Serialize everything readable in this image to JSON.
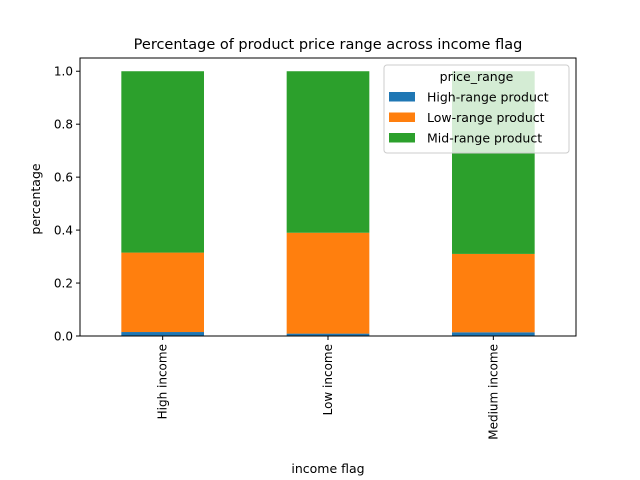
{
  "chart_data": {
    "type": "bar",
    "stacked": true,
    "title": "Percentage of product price range across income flag",
    "xlabel": "income flag",
    "ylabel": "percentage",
    "ylim": [
      0,
      1.05
    ],
    "yticks": [
      "0.0",
      "0.2",
      "0.4",
      "0.6",
      "0.8",
      "1.0"
    ],
    "categories": [
      "High income",
      "Low income",
      "Medium income"
    ],
    "series": [
      {
        "name": "High-range product",
        "color": "#1f77b4",
        "values": [
          0.015,
          0.009,
          0.014
        ]
      },
      {
        "name": "Low-range product",
        "color": "#ff7f0e",
        "values": [
          0.3,
          0.381,
          0.296
        ]
      },
      {
        "name": "Mid-range product",
        "color": "#2ca02c",
        "values": [
          0.685,
          0.61,
          0.69
        ]
      }
    ],
    "legend": {
      "title": "price_range",
      "position": "top-right"
    },
    "grid": false
  }
}
